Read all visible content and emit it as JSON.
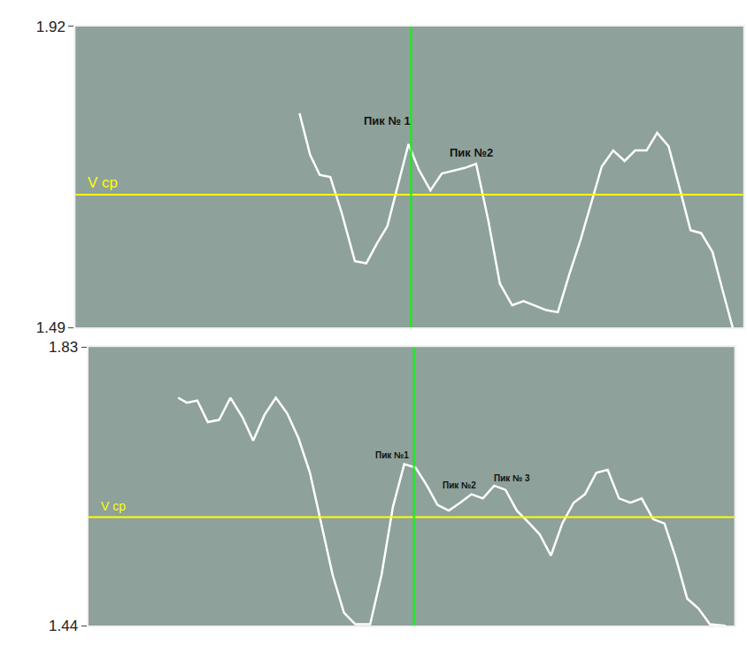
{
  "chart_data": [
    {
      "type": "line",
      "x": [
        255,
        267,
        278,
        290,
        303,
        318,
        331,
        343,
        355,
        367,
        379,
        391,
        404,
        417,
        430,
        443,
        456,
        470,
        483,
        497,
        510,
        523,
        536,
        549,
        562,
        575,
        587,
        599,
        612,
        625,
        637,
        650,
        662,
        675,
        687,
        700,
        712,
        725,
        737,
        748
      ],
      "values": [
        1.796,
        1.737,
        1.708,
        1.705,
        1.654,
        1.585,
        1.582,
        1.61,
        1.635,
        1.692,
        1.752,
        1.715,
        1.686,
        1.71,
        1.714,
        1.718,
        1.724,
        1.642,
        1.553,
        1.522,
        1.528,
        1.522,
        1.515,
        1.512,
        1.566,
        1.616,
        1.667,
        1.72,
        1.743,
        1.728,
        1.743,
        1.743,
        1.768,
        1.749,
        1.692,
        1.629,
        1.625,
        1.598,
        1.541,
        1.49
      ],
      "color": "#ffffff",
      "xlim": [
        0,
        760
      ],
      "xticks": [],
      "ylim": [
        1.49,
        1.92
      ],
      "yticks": [
        1.92,
        1.49
      ],
      "tick_labels": "y",
      "grid": false,
      "hlines": [
        {
          "y": 1.68,
          "label": "V ср",
          "color": "#ffff00"
        }
      ],
      "vlines": [
        {
          "x": 382,
          "color": "#00ff00"
        }
      ],
      "annotations": [
        {
          "text": "Пик № 1",
          "x": 355,
          "y": 1.785
        },
        {
          "text": "Пик №2",
          "x": 450,
          "y": 1.74
        }
      ]
    },
    {
      "type": "line",
      "x": [
        103,
        113,
        125,
        137,
        150,
        163,
        177,
        189,
        202,
        215,
        228,
        241,
        254,
        267,
        280,
        293,
        306,
        323,
        336,
        349,
        362,
        375,
        388,
        400,
        413,
        426,
        439,
        452,
        465,
        478,
        491,
        504,
        517,
        530,
        543,
        556,
        569,
        582,
        595,
        608,
        621,
        634,
        647,
        660,
        673,
        686,
        699,
        712,
        730
      ],
      "values": [
        1.759,
        1.752,
        1.755,
        1.725,
        1.728,
        1.759,
        1.731,
        1.699,
        1.735,
        1.759,
        1.737,
        1.702,
        1.654,
        1.583,
        1.511,
        1.458,
        1.442,
        1.442,
        1.511,
        1.606,
        1.666,
        1.661,
        1.636,
        1.609,
        1.601,
        1.612,
        1.624,
        1.618,
        1.636,
        1.63,
        1.601,
        1.585,
        1.568,
        1.538,
        1.583,
        1.612,
        1.624,
        1.654,
        1.658,
        1.618,
        1.612,
        1.618,
        1.589,
        1.583,
        1.535,
        1.478,
        1.464,
        1.442,
        1.44
      ],
      "color": "#ffffff",
      "xlim": [
        0,
        740
      ],
      "xticks": [],
      "ylim": [
        1.44,
        1.83
      ],
      "yticks": [
        1.83,
        1.44
      ],
      "tick_labels": "y",
      "grid": false,
      "hlines": [
        {
          "y": 1.592,
          "label": "V ср",
          "color": "#ffff00"
        }
      ],
      "vlines": [
        {
          "x": 373,
          "color": "#00ff00"
        }
      ],
      "annotations": [
        {
          "text": "Пик №1",
          "x": 348,
          "y": 1.678
        },
        {
          "text": "Пик №2",
          "x": 425,
          "y": 1.636
        },
        {
          "text": "Пик № 3",
          "x": 485,
          "y": 1.646
        }
      ]
    }
  ]
}
